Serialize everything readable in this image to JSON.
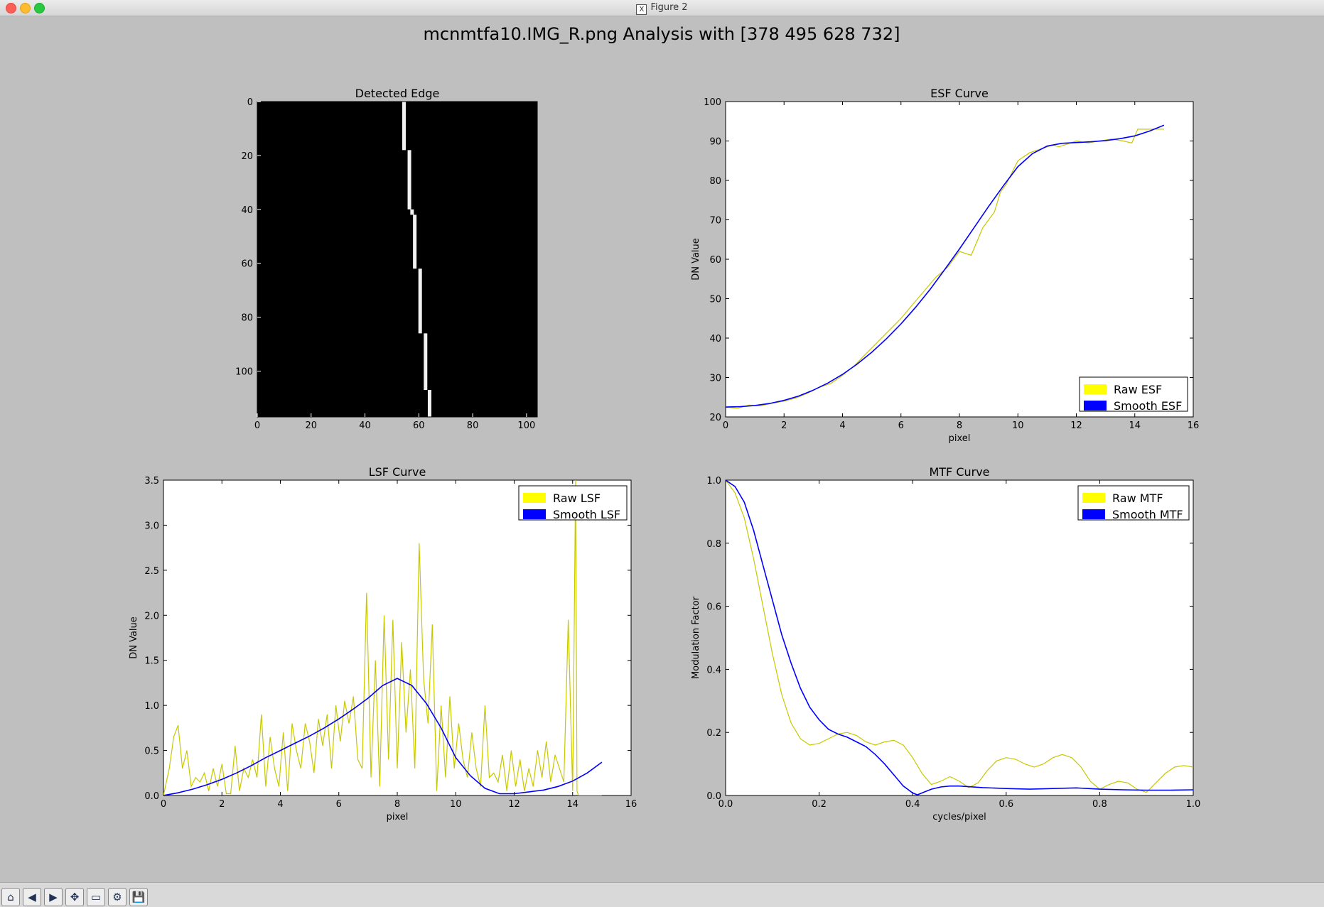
{
  "window": {
    "title": "Figure 2"
  },
  "figure": {
    "suptitle": "mcnmtfa10.IMG_R.png Analysis with [378 495 628 732]"
  },
  "toolbar": {
    "buttons": [
      {
        "name": "home-button",
        "icon": "home-icon",
        "glyph": "⌂"
      },
      {
        "name": "back-button",
        "icon": "back-arrow-icon",
        "glyph": "◀"
      },
      {
        "name": "forward-button",
        "icon": "forward-arrow-icon",
        "glyph": "▶"
      },
      {
        "name": "pan-button",
        "icon": "pan-icon",
        "glyph": "✥"
      },
      {
        "name": "zoom-button",
        "icon": "zoom-rect-icon",
        "glyph": "▭"
      },
      {
        "name": "subplots-button",
        "icon": "configure-subplots-icon",
        "glyph": "⚙"
      },
      {
        "name": "save-button",
        "icon": "save-icon",
        "glyph": "💾"
      }
    ]
  },
  "chart_data": [
    {
      "id": "edge",
      "type": "heatmap",
      "title": "Detected Edge",
      "xlim": [
        0,
        104
      ],
      "ylim": [
        0,
        117
      ],
      "xticks": [
        "0",
        "20",
        "40",
        "60",
        "80",
        "100"
      ],
      "yticks": [
        "0",
        "20",
        "40",
        "60",
        "80",
        "100"
      ],
      "edge_segments": [
        {
          "y": [
            0,
            18
          ],
          "x": 54.5
        },
        {
          "y": [
            18,
            40
          ],
          "x": 56.5
        },
        {
          "y": [
            40,
            42
          ],
          "x": 57.5
        },
        {
          "y": [
            42,
            62
          ],
          "x": 58.5
        },
        {
          "y": [
            62,
            86
          ],
          "x": 60.5
        },
        {
          "y": [
            86,
            107
          ],
          "x": 62.5
        },
        {
          "y": [
            107,
            117
          ],
          "x": 64.0
        }
      ]
    },
    {
      "id": "esf",
      "type": "line",
      "title": "ESF Curve",
      "xlabel": "pixel",
      "ylabel": "DN Value",
      "xlim": [
        0,
        16
      ],
      "ylim": [
        20,
        100
      ],
      "xticks": [
        0,
        2,
        4,
        6,
        8,
        10,
        12,
        14,
        16
      ],
      "yticks": [
        20,
        30,
        40,
        50,
        60,
        70,
        80,
        90,
        100
      ],
      "legend": "lower-right",
      "series": [
        {
          "name": "Raw ESF",
          "color": "#c8c800",
          "x": [
            0,
            0.4,
            0.8,
            1.2,
            1.6,
            2.0,
            2.4,
            2.8,
            3.2,
            3.6,
            4.0,
            4.4,
            4.8,
            5.2,
            5.6,
            6.0,
            6.4,
            6.8,
            7.2,
            7.6,
            8.0,
            8.4,
            8.8,
            9.2,
            9.4,
            9.6,
            9.8,
            10.0,
            10.4,
            10.8,
            11.2,
            11.4,
            11.6,
            12.0,
            12.4,
            12.8,
            13.2,
            13.6,
            13.9,
            14.1,
            14.4,
            14.8,
            15.0
          ],
          "y": [
            22.5,
            22.2,
            23,
            22.8,
            23.5,
            24,
            24.8,
            26,
            27.5,
            28.5,
            30.5,
            33,
            36,
            39,
            42,
            45,
            48.5,
            52,
            55.5,
            58,
            62,
            61,
            68,
            72,
            77,
            79,
            82,
            85,
            87,
            88,
            89,
            88.5,
            89,
            90,
            89.5,
            90,
            90.5,
            90,
            89.5,
            93,
            93,
            93,
            93
          ]
        },
        {
          "name": "Smooth ESF",
          "color": "#0000ff",
          "x": [
            0,
            0.5,
            1,
            1.5,
            2,
            2.5,
            3,
            3.5,
            4,
            4.5,
            5,
            5.5,
            6,
            6.5,
            7,
            7.5,
            8,
            8.5,
            9,
            9.5,
            10,
            10.5,
            11,
            11.5,
            12,
            12.5,
            13,
            13.5,
            14,
            14.5,
            15
          ],
          "y": [
            22.5,
            22.6,
            22.9,
            23.4,
            24.2,
            25.3,
            26.8,
            28.6,
            30.8,
            33.4,
            36.4,
            39.8,
            43.6,
            47.8,
            52.4,
            57.4,
            62.6,
            68,
            73.4,
            78.6,
            83.5,
            86.8,
            88.7,
            89.4,
            89.6,
            89.8,
            90.1,
            90.6,
            91.3,
            92.5,
            94
          ]
        }
      ]
    },
    {
      "id": "lsf",
      "type": "line",
      "title": "LSF Curve",
      "xlabel": "pixel",
      "ylabel": "DN Value",
      "xlim": [
        0,
        16
      ],
      "ylim": [
        0,
        3.5
      ],
      "xticks": [
        0,
        2,
        4,
        6,
        8,
        10,
        12,
        14,
        16
      ],
      "yticks": [
        "0.0",
        "0.5",
        "1.0",
        "1.5",
        "2.0",
        "2.5",
        "3.0",
        "3.5"
      ],
      "legend": "upper-right",
      "series": [
        {
          "name": "Raw LSF",
          "color": "#c8c800",
          "x": [
            0,
            0.2,
            0.35,
            0.5,
            0.65,
            0.8,
            0.95,
            1.1,
            1.25,
            1.4,
            1.55,
            1.7,
            1.85,
            2.0,
            2.15,
            2.3,
            2.45,
            2.6,
            2.75,
            2.9,
            3.05,
            3.2,
            3.35,
            3.5,
            3.65,
            3.8,
            3.95,
            4.1,
            4.25,
            4.4,
            4.55,
            4.7,
            4.85,
            5.0,
            5.15,
            5.3,
            5.45,
            5.6,
            5.75,
            5.9,
            6.05,
            6.2,
            6.35,
            6.5,
            6.65,
            6.8,
            6.95,
            7.1,
            7.25,
            7.4,
            7.55,
            7.7,
            7.85,
            8.0,
            8.15,
            8.3,
            8.45,
            8.6,
            8.75,
            8.9,
            9.05,
            9.2,
            9.35,
            9.5,
            9.65,
            9.8,
            9.95,
            10.1,
            10.25,
            10.4,
            10.55,
            10.7,
            10.85,
            11.0,
            11.15,
            11.3,
            11.45,
            11.6,
            11.75,
            11.9,
            12.05,
            12.2,
            12.35,
            12.5,
            12.65,
            12.8,
            12.95,
            13.1,
            13.25,
            13.4,
            13.55,
            13.7,
            13.85,
            14.0,
            14.1,
            14.15,
            14.2,
            14.3,
            14.5,
            14.8,
            15.0
          ],
          "y": [
            0,
            0.3,
            0.65,
            0.78,
            0.3,
            0.5,
            0.1,
            0.2,
            0.15,
            0.25,
            0.05,
            0.3,
            0.1,
            0.35,
            0.02,
            0.02,
            0.55,
            0.05,
            0.3,
            0.2,
            0.4,
            0.2,
            0.9,
            0.1,
            0.65,
            0.3,
            0.1,
            0.7,
            0.05,
            0.8,
            0.5,
            0.3,
            0.8,
            0.6,
            0.25,
            0.85,
            0.55,
            0.9,
            0.3,
            1.0,
            0.6,
            1.05,
            0.8,
            1.1,
            0.4,
            0.3,
            2.25,
            0.2,
            1.5,
            0.1,
            2.0,
            0.4,
            1.95,
            0.3,
            1.7,
            0.7,
            1.4,
            0.3,
            2.8,
            1.3,
            0.8,
            1.9,
            0.05,
            1.0,
            0.2,
            1.1,
            0.3,
            0.8,
            0.4,
            0.2,
            0.7,
            0.3,
            0.1,
            1.0,
            0.2,
            0.25,
            0.15,
            0.45,
            0.05,
            0.5,
            0.1,
            0.4,
            0.05,
            0.3,
            0.1,
            0.5,
            0.2,
            0.6,
            0.15,
            0.45,
            0.3,
            0.15,
            1.95,
            0.05,
            3.5,
            0.05,
            0,
            0,
            0,
            0,
            0
          ]
        },
        {
          "name": "Smooth LSF",
          "color": "#0000ff",
          "x": [
            0,
            0.5,
            1,
            1.5,
            2,
            2.5,
            3,
            3.5,
            4,
            4.5,
            5,
            5.5,
            6,
            6.5,
            7,
            7.5,
            8,
            8.5,
            9,
            9.5,
            10,
            10.5,
            11,
            11.5,
            12,
            12.5,
            13,
            13.5,
            14,
            14.5,
            15
          ],
          "y": [
            0,
            0.03,
            0.07,
            0.12,
            0.18,
            0.25,
            0.33,
            0.42,
            0.5,
            0.58,
            0.66,
            0.75,
            0.85,
            0.96,
            1.08,
            1.22,
            1.3,
            1.22,
            1.02,
            0.75,
            0.42,
            0.22,
            0.08,
            0.02,
            0.02,
            0.04,
            0.06,
            0.1,
            0.16,
            0.25,
            0.37
          ]
        }
      ]
    },
    {
      "id": "mtf",
      "type": "line",
      "title": "MTF Curve",
      "xlabel": "cycles/pixel",
      "ylabel": "Modulation Factor",
      "xlim": [
        0,
        1.0
      ],
      "ylim": [
        0,
        1.0
      ],
      "xticks": [
        "0.0",
        "0.2",
        "0.4",
        "0.6",
        "0.8",
        "1.0"
      ],
      "yticks": [
        "0.0",
        "0.2",
        "0.4",
        "0.6",
        "0.8",
        "1.0"
      ],
      "legend": "upper-right",
      "series": [
        {
          "name": "Raw MTF",
          "color": "#c8c800",
          "x": [
            0,
            0.02,
            0.04,
            0.06,
            0.08,
            0.1,
            0.12,
            0.14,
            0.16,
            0.18,
            0.2,
            0.22,
            0.24,
            0.26,
            0.28,
            0.3,
            0.32,
            0.34,
            0.36,
            0.38,
            0.4,
            0.42,
            0.44,
            0.46,
            0.48,
            0.5,
            0.52,
            0.54,
            0.56,
            0.58,
            0.6,
            0.62,
            0.64,
            0.66,
            0.68,
            0.7,
            0.72,
            0.74,
            0.76,
            0.78,
            0.8,
            0.82,
            0.84,
            0.86,
            0.88,
            0.9,
            0.92,
            0.94,
            0.96,
            0.98,
            1.0
          ],
          "y": [
            1.0,
            0.96,
            0.88,
            0.75,
            0.6,
            0.45,
            0.32,
            0.23,
            0.18,
            0.16,
            0.165,
            0.18,
            0.195,
            0.2,
            0.19,
            0.17,
            0.16,
            0.17,
            0.175,
            0.16,
            0.12,
            0.07,
            0.035,
            0.045,
            0.06,
            0.045,
            0.025,
            0.04,
            0.08,
            0.11,
            0.12,
            0.115,
            0.1,
            0.09,
            0.1,
            0.12,
            0.13,
            0.12,
            0.09,
            0.045,
            0.02,
            0.035,
            0.045,
            0.04,
            0.02,
            0.01,
            0.04,
            0.07,
            0.09,
            0.095,
            0.09
          ]
        },
        {
          "name": "Smooth MTF",
          "color": "#0000ff",
          "x": [
            0,
            0.02,
            0.04,
            0.06,
            0.08,
            0.1,
            0.12,
            0.14,
            0.16,
            0.18,
            0.2,
            0.22,
            0.24,
            0.26,
            0.28,
            0.3,
            0.32,
            0.34,
            0.36,
            0.38,
            0.4,
            0.41,
            0.42,
            0.44,
            0.46,
            0.48,
            0.5,
            0.55,
            0.6,
            0.65,
            0.7,
            0.75,
            0.8,
            0.85,
            0.9,
            0.95,
            1.0
          ],
          "y": [
            1.0,
            0.98,
            0.93,
            0.84,
            0.73,
            0.62,
            0.51,
            0.42,
            0.34,
            0.28,
            0.24,
            0.21,
            0.195,
            0.185,
            0.17,
            0.155,
            0.13,
            0.1,
            0.065,
            0.03,
            0.008,
            0.002,
            0.008,
            0.02,
            0.027,
            0.03,
            0.03,
            0.025,
            0.022,
            0.02,
            0.022,
            0.024,
            0.02,
            0.018,
            0.017,
            0.017,
            0.018
          ]
        }
      ]
    }
  ]
}
